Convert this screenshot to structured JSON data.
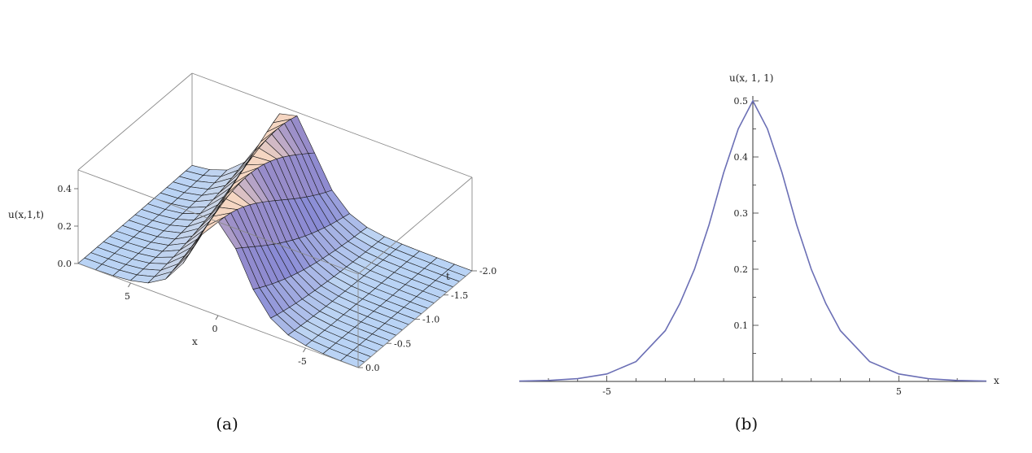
{
  "chart_data": [
    {
      "panel": "(a)",
      "type": "surface",
      "zlabel": "u(x,1,t)",
      "xlabel": "x",
      "ylabel": "t",
      "x_ticks": [
        "5",
        "0",
        "-5"
      ],
      "t_ticks": [
        "0.0",
        "-0.5",
        "-1.0",
        "-1.5",
        "-2.0"
      ],
      "z_ticks": [
        "0.0",
        "0.2",
        "0.4"
      ],
      "xlim": [
        -8,
        8
      ],
      "tlim": [
        -2.0,
        0.0
      ],
      "zlim": [
        0,
        0.5
      ],
      "grid": true,
      "colors": {
        "low": "#b9d3f5",
        "crest": "#f5d6c2",
        "dark": "#4a4fd0",
        "edge": "#1a1a1a"
      }
    },
    {
      "panel": "(b)",
      "type": "line",
      "ylabel": "u(x, 1, 1)",
      "xlabel": "x",
      "x_ticks": [
        "-5",
        "5"
      ],
      "y_ticks": [
        "0.1",
        "0.2",
        "0.3",
        "0.4",
        "0.5"
      ],
      "xlim": [
        -8,
        8
      ],
      "ylim": [
        0,
        0.5
      ],
      "series": [
        {
          "color": "#6b6fb5",
          "x": [
            -8,
            -7,
            -6,
            -5,
            -4,
            -3,
            -2.5,
            -2,
            -1.5,
            -1,
            -0.5,
            0,
            0.5,
            1,
            1.5,
            2,
            2.5,
            3,
            4,
            5,
            6,
            7,
            8
          ],
          "y": [
            0.0007,
            0.0018,
            0.0049,
            0.0133,
            0.0353,
            0.0904,
            0.1387,
            0.2,
            0.2792,
            0.3717,
            0.4502,
            0.5,
            0.4502,
            0.3717,
            0.2792,
            0.2,
            0.1387,
            0.0904,
            0.0353,
            0.0133,
            0.0049,
            0.0018,
            0.0007
          ]
        }
      ]
    }
  ],
  "captions": [
    "(a)",
    "(b)"
  ]
}
